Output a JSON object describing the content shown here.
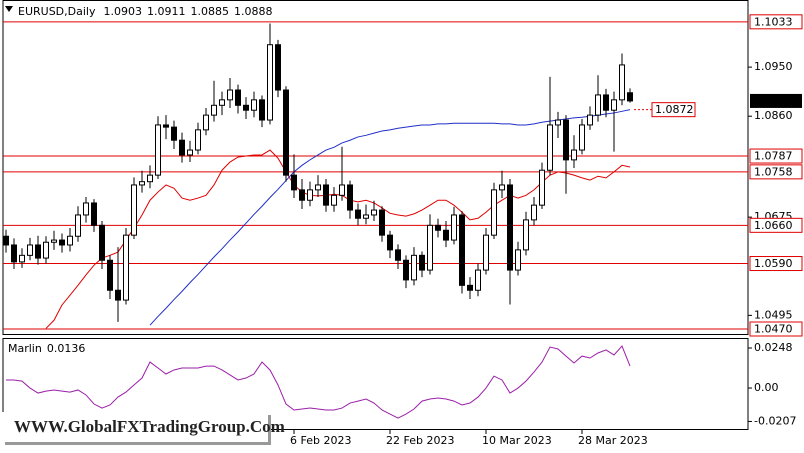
{
  "chart_data": [
    {
      "type": "candlestick",
      "symbol": "EURUSD,Daily",
      "categories": [
        null,
        null,
        null,
        null,
        null,
        null,
        null,
        null,
        null,
        null,
        null,
        null,
        null,
        null,
        null,
        null,
        null,
        null,
        null,
        null,
        null,
        null,
        null,
        null,
        null,
        null,
        null,
        null,
        null,
        null,
        null,
        null,
        null,
        null,
        null,
        null,
        "6 Feb 2023",
        null,
        null,
        null,
        null,
        null,
        null,
        null,
        null,
        null,
        null,
        null,
        "22 Feb 2023",
        null,
        null,
        null,
        null,
        null,
        null,
        null,
        null,
        null,
        null,
        null,
        "10 Mar 2023",
        null,
        null,
        null,
        null,
        null,
        null,
        null,
        null,
        null,
        null,
        null,
        "28 Mar 2023",
        null,
        null,
        null,
        null,
        null,
        null
      ],
      "open": [
        1.064,
        1.0624,
        1.0593,
        1.0605,
        1.0624,
        1.06,
        1.0629,
        1.0633,
        1.0624,
        1.064,
        1.0679,
        1.0701,
        1.066,
        1.0596,
        1.0541,
        1.0523,
        1.0642,
        1.0734,
        1.074,
        1.0752,
        1.0844,
        1.084,
        1.0816,
        1.0789,
        1.0798,
        1.0835,
        1.0862,
        1.088,
        1.089,
        1.0908,
        1.088,
        1.0871,
        1.089,
        1.0853,
        1.0991,
        1.0908,
        1.0752,
        1.0725,
        1.0706,
        1.0725,
        1.0734,
        1.0697,
        1.0715,
        1.0734,
        1.0688,
        1.0673,
        1.0679,
        1.0688,
        1.0642,
        1.0615,
        1.0596,
        1.056,
        1.0605,
        1.0578,
        1.066,
        1.0651,
        1.0633,
        1.0679,
        1.055,
        1.0541,
        1.0578,
        1.0642,
        1.0725,
        1.0734,
        1.0578,
        1.0615,
        1.067,
        1.0697,
        1.0761,
        1.0844,
        1.0853,
        1.078,
        1.0798,
        1.0844,
        1.0862,
        1.0899,
        1.0871,
        1.089,
        1.0903
      ],
      "high": [
        1.0652,
        1.0636,
        1.0618,
        1.0637,
        1.0641,
        1.064,
        1.065,
        1.0645,
        1.0655,
        1.0695,
        1.0712,
        1.0708,
        1.0668,
        1.0605,
        1.062,
        1.0655,
        1.0748,
        1.076,
        1.077,
        1.086,
        1.0862,
        1.0852,
        1.083,
        1.0815,
        1.0848,
        1.0875,
        1.0925,
        1.0905,
        1.093,
        1.0918,
        1.0895,
        1.0905,
        1.0898,
        1.103,
        1.1,
        1.0915,
        1.079,
        1.0745,
        1.074,
        1.0752,
        1.0745,
        1.073,
        1.0804,
        1.0742,
        1.07,
        1.0698,
        1.0705,
        1.0695,
        1.065,
        1.0625,
        1.0605,
        1.062,
        1.0612,
        1.068,
        1.0672,
        1.0668,
        1.0694,
        1.0686,
        1.0565,
        1.059,
        1.0655,
        1.0738,
        1.076,
        1.0745,
        1.063,
        1.0685,
        1.0712,
        1.0775,
        1.0932,
        1.0868,
        1.0862,
        1.0825,
        1.0855,
        1.0878,
        1.0935,
        1.091,
        1.0905,
        1.0975,
        1.0911
      ],
      "low": [
        1.061,
        1.058,
        1.0582,
        1.0596,
        1.0588,
        1.059,
        1.0615,
        1.061,
        1.0612,
        1.063,
        1.0665,
        1.0648,
        1.058,
        1.0525,
        1.0483,
        1.0515,
        1.0635,
        1.072,
        1.0728,
        1.0745,
        1.0818,
        1.08,
        1.0775,
        1.0776,
        1.079,
        1.0825,
        1.085,
        1.0862,
        1.0875,
        1.0865,
        1.0855,
        1.0858,
        1.084,
        1.0845,
        1.0895,
        1.074,
        1.071,
        1.069,
        1.0695,
        1.0712,
        1.0685,
        1.0685,
        1.0705,
        1.0672,
        1.066,
        1.0662,
        1.0668,
        1.063,
        1.06,
        1.058,
        1.0545,
        1.055,
        1.0565,
        1.057,
        1.0638,
        1.062,
        1.0625,
        1.0535,
        1.0525,
        1.053,
        1.057,
        1.0635,
        1.071,
        1.0515,
        1.0568,
        1.0605,
        1.066,
        1.069,
        1.0752,
        1.082,
        1.0718,
        1.0765,
        1.079,
        1.0835,
        1.085,
        1.0858,
        1.0795,
        1.088,
        1.0885
      ],
      "close": [
        1.0624,
        1.0593,
        1.0605,
        1.0624,
        1.06,
        1.0629,
        1.0633,
        1.0624,
        1.064,
        1.0679,
        1.0701,
        1.066,
        1.0596,
        1.0541,
        1.0523,
        1.0642,
        1.0734,
        1.074,
        1.0752,
        1.0844,
        1.084,
        1.0816,
        1.0789,
        1.0798,
        1.0835,
        1.0862,
        1.088,
        1.089,
        1.0908,
        1.088,
        1.0871,
        1.089,
        1.0853,
        1.0991,
        1.0908,
        1.0752,
        1.0725,
        1.0706,
        1.0725,
        1.0734,
        1.0697,
        1.0715,
        1.0734,
        1.0688,
        1.0673,
        1.0679,
        1.0688,
        1.0642,
        1.0615,
        1.0596,
        1.056,
        1.0605,
        1.0578,
        1.066,
        1.0651,
        1.0633,
        1.0679,
        1.055,
        1.0541,
        1.0578,
        1.0642,
        1.0725,
        1.0734,
        1.0578,
        1.0615,
        1.067,
        1.0697,
        1.0761,
        1.0844,
        1.0853,
        1.078,
        1.0798,
        1.0844,
        1.0862,
        1.0899,
        1.0871,
        1.089,
        1.0954,
        1.0888
      ],
      "color_up": "#ffffff",
      "color_down": "#000000",
      "outline": "#000000",
      "series": [
        {
          "color": "#e00000",
          "values": [
            null,
            null,
            null,
            null,
            null,
            1.0471,
            1.0486,
            1.0514,
            1.0532,
            1.055,
            1.0569,
            1.0587,
            1.06,
            1.0605,
            1.0611,
            1.0633,
            1.0655,
            1.0679,
            1.0706,
            1.0721,
            1.0734,
            1.0728,
            1.071,
            1.0706,
            1.071,
            1.0715,
            1.0734,
            1.0761,
            1.0776,
            1.0785,
            1.0787,
            1.0789,
            1.0789,
            1.0798,
            1.0783,
            1.0758,
            1.0734,
            1.0721,
            1.0715,
            1.0714,
            1.0715,
            1.0717,
            1.0715,
            1.0706,
            1.0703,
            1.0706,
            1.0701,
            1.0692,
            1.0682,
            1.0679,
            1.0677,
            1.0681,
            1.0688,
            1.0697,
            1.0706,
            1.0706,
            1.0697,
            1.0684,
            1.067,
            1.0673,
            1.0684,
            1.0697,
            1.0706,
            1.0715,
            1.071,
            1.0715,
            1.0725,
            1.0739,
            1.0752,
            1.0758,
            1.0756,
            1.0752,
            1.0747,
            1.0743,
            1.075,
            1.0747,
            1.0758,
            1.077,
            1.0767
          ]
        },
        {
          "color": "#1f2fc8",
          "label_last": true,
          "values": [
            null,
            null,
            null,
            null,
            null,
            null,
            null,
            null,
            null,
            null,
            null,
            null,
            null,
            null,
            null,
            null,
            null,
            null,
            1.0477,
            1.0493,
            1.0508,
            1.0524,
            1.0539,
            1.0555,
            1.057,
            1.0586,
            1.0602,
            1.0617,
            1.0633,
            1.0648,
            1.0664,
            1.068,
            1.0695,
            1.0711,
            1.0726,
            1.0742,
            1.0758,
            1.077,
            1.078,
            1.0789,
            1.0798,
            1.0803,
            1.0811,
            1.0816,
            1.0822,
            1.0825,
            1.0829,
            1.0833,
            1.0835,
            1.0838,
            1.084,
            1.0842,
            1.0844,
            1.0844,
            1.0846,
            1.0846,
            1.0847,
            1.0847,
            1.0847,
            1.0847,
            1.0847,
            1.0847,
            1.0846,
            1.0846,
            1.0844,
            1.0844,
            1.0846,
            1.0849,
            1.0851,
            1.0853,
            1.0855,
            1.0857,
            1.0858,
            1.086,
            1.0862,
            1.0864,
            1.0866,
            1.0869,
            1.0872
          ]
        }
      ],
      "level_color": "#e00000",
      "levels": [
        {
          "value": 1.1033,
          "label": "1.1033"
        },
        {
          "value": 1.0787,
          "label": "1.0787"
        },
        {
          "value": 1.0758,
          "label": "1.0758"
        },
        {
          "value": 1.066,
          "label": "1.0660"
        },
        {
          "value": 1.059,
          "label": "1.0590"
        },
        {
          "value": 1.047,
          "label": "1.0470"
        }
      ],
      "ylim": [
        1.0459,
        1.1073
      ],
      "yticks": [
        {
          "value": 1.095,
          "label": "1.0950"
        },
        {
          "value": 1.086,
          "label": "1.0860"
        },
        1.0675,
        1.0495
      ]
    },
    {
      "type": "line",
      "title": "Marlin",
      "series": [
        {
          "color": "#9b1fa8",
          "values": [
            0.005,
            0.005,
            0.0043,
            0,
            -0.0031,
            -0.0019,
            -0.0012,
            -0.0019,
            -0.0025,
            -0.0012,
            -0.0043,
            -0.0099,
            -0.0124,
            -0.0105,
            -0.0056,
            -0.0025,
            0.0019,
            0.0062,
            0.0161,
            0.0124,
            0.0087,
            0.0112,
            0.0124,
            0.0124,
            0.0124,
            0.0136,
            0.0136,
            0.0112,
            0.0081,
            0.005,
            0.0062,
            0.0087,
            0.0161,
            0.0112,
            0.0019,
            -0.0099,
            -0.0136,
            -0.013,
            -0.0124,
            -0.013,
            -0.0136,
            -0.0136,
            -0.0124,
            -0.0093,
            -0.0081,
            -0.0068,
            -0.0093,
            -0.0136,
            -0.0161,
            -0.0186,
            -0.0161,
            -0.013,
            -0.0081,
            -0.0068,
            -0.0062,
            -0.0068,
            -0.0081,
            -0.0105,
            -0.0093,
            -0.0056,
            0,
            0.0074,
            0.005,
            -0.0031,
            0,
            0.0043,
            0.0099,
            0.0161,
            0.0254,
            0.0242,
            0.0198,
            0.0155,
            0.0198,
            0.0186,
            0.0217,
            0.0236,
            0.0205,
            0.026,
            0.0136
          ]
        }
      ],
      "ylim": [
        -0.026,
        0.031
      ],
      "yticks": [
        0.0248,
        {
          "value": 0,
          "label": "0.00"
        },
        -0.0207
      ]
    }
  ],
  "watermark": "WWW.GlobalFXTradingGroup.Com"
}
